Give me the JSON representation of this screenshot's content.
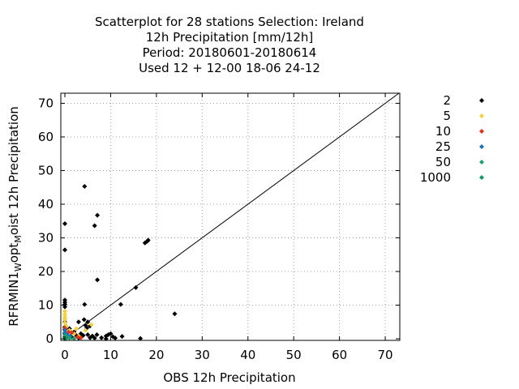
{
  "chart_data": {
    "type": "scatter",
    "title_lines": [
      "Scatterplot for   28 stations Selection: Ireland",
      "12h Precipitation [mm/12h]",
      "Period: 20180601-20180614",
      "Used  12 + 12-00 18-06 24-12"
    ],
    "xlabel": "OBS 12h Precipitation",
    "ylabel": {
      "base": "RFRMIN1",
      "sub1": "W",
      "mid": "opt",
      "sub2": "M",
      "tail": "oist 12h Precipitation"
    },
    "xlim": [
      0,
      73
    ],
    "ylim": [
      0,
      73
    ],
    "xticks": [
      "0",
      "10",
      "20",
      "30",
      "40",
      "50",
      "60",
      "70"
    ],
    "yticks": [
      "0",
      "10",
      "20",
      "30",
      "40",
      "50",
      "60",
      "70"
    ],
    "tick_values": [
      0,
      10,
      20,
      30,
      40,
      50,
      60,
      70
    ],
    "grid": true,
    "legend_position": "right",
    "series": [
      {
        "name": "2",
        "color": "#000000",
        "points": [
          [
            0,
            34.2
          ],
          [
            0,
            26.4
          ],
          [
            0,
            11.5
          ],
          [
            0,
            10.8
          ],
          [
            0,
            10.2
          ],
          [
            0,
            9.5
          ],
          [
            0,
            5.0
          ],
          [
            0,
            3.5
          ],
          [
            0,
            2.8
          ],
          [
            0,
            1.5
          ],
          [
            0,
            0.5
          ],
          [
            4.3,
            45.3
          ],
          [
            6.5,
            33.6
          ],
          [
            7.1,
            36.7
          ],
          [
            7.1,
            17.5
          ],
          [
            17.5,
            28.5
          ],
          [
            18.0,
            29.0
          ],
          [
            18.2,
            29.3
          ],
          [
            15.5,
            15.2
          ],
          [
            12.2,
            10.2
          ],
          [
            4.3,
            10.2
          ],
          [
            24.0,
            7.4
          ],
          [
            1.0,
            3.0
          ],
          [
            2.0,
            2.0
          ],
          [
            3.0,
            5.0
          ],
          [
            4.2,
            5.7
          ],
          [
            4.5,
            4.0
          ],
          [
            5.0,
            5.0
          ],
          [
            5.5,
            3.8
          ],
          [
            4.8,
            3.2
          ],
          [
            3.5,
            1.5
          ],
          [
            2.5,
            1.0
          ],
          [
            1.5,
            0.5
          ],
          [
            4.0,
            1.0
          ],
          [
            5.0,
            1.2
          ],
          [
            6.0,
            0.8
          ],
          [
            7.0,
            1.2
          ],
          [
            5.5,
            0.3
          ],
          [
            6.5,
            0.2
          ],
          [
            8.0,
            0.3
          ],
          [
            9.0,
            0.8
          ],
          [
            9.5,
            1.2
          ],
          [
            10.0,
            1.5
          ],
          [
            10.5,
            0.6
          ],
          [
            11.0,
            0.2
          ],
          [
            12.5,
            0.7
          ],
          [
            16.5,
            0.1
          ],
          [
            9.0,
            0.0
          ],
          [
            3.0,
            0.2
          ]
        ]
      },
      {
        "name": "5",
        "color": "#f4d03f",
        "points": [
          [
            0,
            8.2
          ],
          [
            0,
            7.3
          ],
          [
            0,
            6.5
          ],
          [
            0,
            5.8
          ],
          [
            0,
            4.8
          ],
          [
            0.3,
            3.8
          ],
          [
            1.0,
            2.5
          ],
          [
            2.0,
            1.5
          ],
          [
            2.5,
            3.0
          ],
          [
            3.0,
            0.8
          ],
          [
            5.8,
            4.2
          ],
          [
            4.5,
            2.5
          ]
        ]
      },
      {
        "name": "10",
        "color": "#e0341a",
        "points": [
          [
            0,
            3.2
          ],
          [
            0.8,
            2.0
          ],
          [
            1.5,
            1.8
          ],
          [
            2.8,
            0.5
          ],
          [
            3.5,
            0.3
          ]
        ]
      },
      {
        "name": "25",
        "color": "#1f6fb5",
        "points": [
          [
            0,
            2.5
          ],
          [
            0,
            1.8
          ],
          [
            0.5,
            1.2
          ],
          [
            1.2,
            0.8
          ],
          [
            0.3,
            0.4
          ]
        ]
      },
      {
        "name": "50",
        "color": "#18a070",
        "points": [
          [
            0,
            1.0
          ],
          [
            0.6,
            0.5
          ],
          [
            1.0,
            0.2
          ],
          [
            2.0,
            0.1
          ]
        ]
      },
      {
        "name": "1000",
        "color": "#0d9966",
        "points": [
          [
            0.2,
            0.1
          ],
          [
            0.0,
            0.0
          ]
        ]
      }
    ],
    "diagonal": [
      [
        0,
        0
      ],
      [
        73,
        73
      ]
    ]
  }
}
